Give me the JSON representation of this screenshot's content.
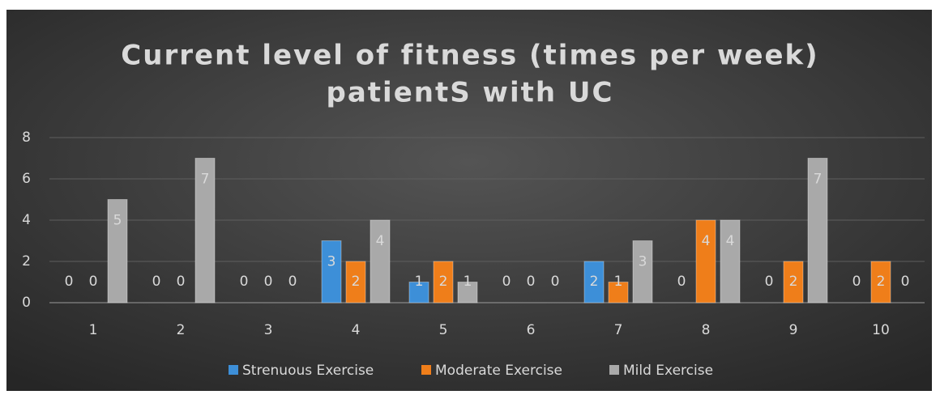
{
  "chart_data": {
    "type": "bar",
    "title": [
      "Current level of fitness (times per week)",
      "patientS with UC"
    ],
    "categories": [
      "1",
      "2",
      "3",
      "4",
      "5",
      "6",
      "7",
      "8",
      "9",
      "10"
    ],
    "series": [
      {
        "name": "Strenuous Exercise",
        "color": "#3d8fd8",
        "values": [
          0,
          0,
          0,
          3,
          1,
          0,
          2,
          0,
          0,
          0
        ]
      },
      {
        "name": "Moderate Exercise",
        "color": "#ef7e1a",
        "values": [
          0,
          0,
          0,
          2,
          2,
          0,
          1,
          4,
          2,
          2
        ]
      },
      {
        "name": "Mild Exercise",
        "color": "#a9a9a9",
        "values": [
          5,
          7,
          0,
          4,
          1,
          0,
          3,
          4,
          7,
          0
        ]
      }
    ],
    "ylim": [
      0,
      8
    ],
    "yticks": [
      0,
      2,
      4,
      6,
      8
    ],
    "grid": true,
    "legend": "bottom"
  }
}
